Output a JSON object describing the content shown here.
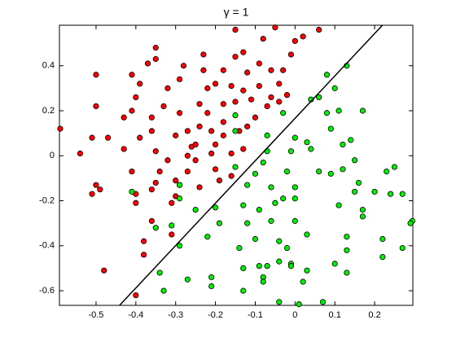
{
  "chart_data": {
    "type": "scatter",
    "title": "γ = 1",
    "xlim": [
      -0.592,
      0.296
    ],
    "ylim": [
      -0.665,
      0.58
    ],
    "xticks": [
      -0.5,
      -0.4,
      -0.3,
      -0.2,
      -0.1,
      0,
      0.1,
      0.2
    ],
    "yticks": [
      -0.6,
      -0.4,
      -0.2,
      0,
      0.2,
      0.4
    ],
    "grid": false,
    "series": [
      {
        "color": "#ff0000",
        "x": [
          -0.59,
          -0.54,
          -0.5,
          -0.5,
          -0.51,
          -0.5,
          -0.51,
          -0.49,
          -0.48,
          -0.47,
          -0.43,
          -0.43,
          -0.41,
          -0.41,
          -0.41,
          -0.4,
          -0.39,
          -0.39,
          -0.4,
          -0.4,
          -0.37,
          -0.36,
          -0.36,
          -0.35,
          -0.35,
          -0.35,
          -0.35,
          -0.36,
          -0.36,
          -0.38,
          -0.38,
          -0.4,
          -0.34,
          -0.33,
          -0.32,
          -0.32,
          -0.31,
          -0.3,
          -0.29,
          -0.29,
          -0.3,
          -0.3,
          -0.29,
          -0.31,
          -0.28,
          -0.27,
          -0.27,
          -0.27,
          -0.26,
          -0.25,
          -0.25,
          -0.24,
          -0.24,
          -0.24,
          -0.23,
          -0.23,
          -0.22,
          -0.22,
          -0.21,
          -0.21,
          -0.2,
          -0.2,
          -0.2,
          -0.19,
          -0.18,
          -0.18,
          -0.18,
          -0.18,
          -0.16,
          -0.16,
          -0.16,
          -0.15,
          -0.15,
          -0.15,
          -0.14,
          -0.13,
          -0.13,
          -0.13,
          -0.12,
          -0.12,
          -0.11,
          -0.1,
          -0.09,
          -0.09,
          -0.08,
          -0.07,
          -0.06,
          -0.06,
          -0.05,
          -0.04,
          -0.04,
          -0.03,
          -0.02,
          -0.01,
          0,
          0.02,
          0.06
        ],
        "values": [
          0.12,
          0.01,
          0.36,
          0.22,
          0.08,
          -0.13,
          -0.17,
          -0.15,
          -0.51,
          0.08,
          0.03,
          0.17,
          0.2,
          0.36,
          -0.07,
          0.26,
          0.08,
          0.32,
          -0.17,
          -0.21,
          0.41,
          0.11,
          0.17,
          0.48,
          0.43,
          0.02,
          -0.12,
          -0.15,
          -0.29,
          -0.38,
          -0.44,
          -0.62,
          -0.07,
          0.22,
          0.3,
          -0.02,
          -0.21,
          0.09,
          0.34,
          0.19,
          -0.18,
          -0.11,
          -0.13,
          -0.35,
          0.4,
          0.11,
          0,
          -0.07,
          0.04,
          0.05,
          -0.02,
          0.23,
          0.13,
          -0.14,
          0.38,
          0.45,
          0.19,
          0.3,
          0.11,
          0.01,
          0.05,
          -0.06,
          0.32,
          -0.11,
          0.38,
          0.23,
          0.15,
          0.09,
          0.01,
          -0.09,
          0.31,
          0.24,
          0.56,
          0.44,
          0.11,
          0.03,
          0.29,
          0.46,
          0.37,
          0.13,
          0.25,
          0.17,
          0.31,
          0.41,
          0.52,
          0.22,
          0.26,
          0.38,
          0.57,
          0.24,
          0.32,
          0.38,
          0.27,
          0.45,
          0.51,
          0.53,
          0.56
        ]
      },
      {
        "color": "#00ee00",
        "x": [
          -0.41,
          -0.35,
          -0.31,
          -0.29,
          -0.29,
          -0.34,
          -0.33,
          -0.29,
          -0.27,
          -0.25,
          -0.22,
          -0.21,
          -0.21,
          -0.2,
          -0.19,
          -0.15,
          -0.15,
          -0.15,
          -0.14,
          -0.13,
          -0.13,
          -0.13,
          -0.12,
          -0.12,
          -0.1,
          -0.1,
          -0.09,
          -0.09,
          -0.08,
          -0.08,
          -0.08,
          -0.07,
          -0.07,
          -0.07,
          -0.06,
          -0.06,
          -0.05,
          -0.04,
          -0.04,
          -0.04,
          -0.03,
          -0.03,
          -0.02,
          -0.02,
          -0.01,
          -0.01,
          -0.01,
          0,
          0,
          0,
          0,
          0.01,
          0.02,
          0.03,
          0.03,
          0.03,
          0.04,
          0.04,
          0.06,
          0.06,
          0.07,
          0.08,
          0.08,
          0.09,
          0.09,
          0.1,
          0.1,
          0.11,
          0.11,
          0.12,
          0.12,
          0.13,
          0.13,
          0.13,
          0.13,
          0.14,
          0.15,
          0.17,
          0.17,
          0.16,
          0.17,
          0.15,
          0.2,
          0.22,
          0.22,
          0.23,
          0.24,
          0.25,
          0.27,
          0.27,
          0.295,
          0.29
        ],
        "values": [
          -0.16,
          -0.32,
          -0.31,
          -0.13,
          -0.19,
          -0.52,
          -0.6,
          -0.4,
          -0.55,
          -0.24,
          -0.36,
          -0.54,
          -0.58,
          -0.23,
          -0.3,
          0.18,
          0.11,
          -0.05,
          -0.41,
          -0.6,
          -0.5,
          -0.22,
          -0.3,
          -0.13,
          -0.08,
          -0.37,
          -0.24,
          -0.49,
          -0.54,
          -0.56,
          -0.03,
          0.02,
          -0.49,
          0.09,
          -0.29,
          -0.14,
          -0.21,
          -0.65,
          -0.47,
          -0.38,
          -0.19,
          0.19,
          -0.07,
          -0.41,
          -0.48,
          -0.49,
          0.02,
          0.08,
          -0.19,
          -0.29,
          -0.14,
          -0.66,
          -0.56,
          -0.51,
          -0.35,
          0.06,
          0.03,
          0.25,
          0.26,
          -0.07,
          -0.65,
          0.36,
          0.19,
          -0.08,
          0.12,
          -0.48,
          0.3,
          -0.22,
          0.2,
          -0.06,
          0.05,
          0.4,
          -0.42,
          -0.36,
          -0.52,
          0.07,
          -0.02,
          -0.24,
          0.2,
          -0.12,
          -0.27,
          -0.16,
          -0.16,
          -0.37,
          -0.45,
          -0.07,
          -0.17,
          -0.05,
          -0.41,
          -0.17,
          -0.29,
          -0.3
        ]
      },
      {
        "color": "#000000",
        "mode": "line",
        "x": [
          -0.441,
          0.22
        ],
        "values": [
          -0.665,
          0.581
        ]
      }
    ]
  }
}
